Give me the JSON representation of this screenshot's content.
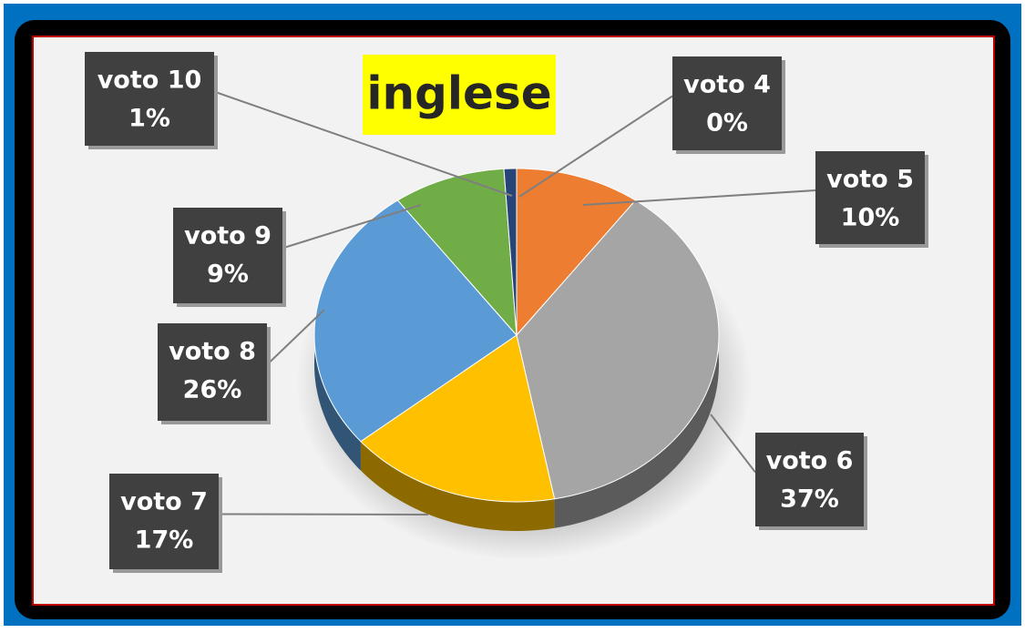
{
  "chart_data": {
    "type": "pie",
    "title": "inglese",
    "categories": [
      "voto 4",
      "voto 5",
      "voto 6",
      "voto 7",
      "voto 8",
      "voto 9",
      "voto 10"
    ],
    "values": [
      0,
      10,
      37,
      17,
      26,
      9,
      1
    ],
    "value_labels": [
      "0%",
      "10%",
      "37%",
      "17%",
      "26%",
      "9%",
      "1%"
    ],
    "colors": [
      "#4472c4",
      "#ed7d31",
      "#a5a5a5",
      "#ffc000",
      "#5b9bd5",
      "#70ad47",
      "#264478"
    ]
  }
}
